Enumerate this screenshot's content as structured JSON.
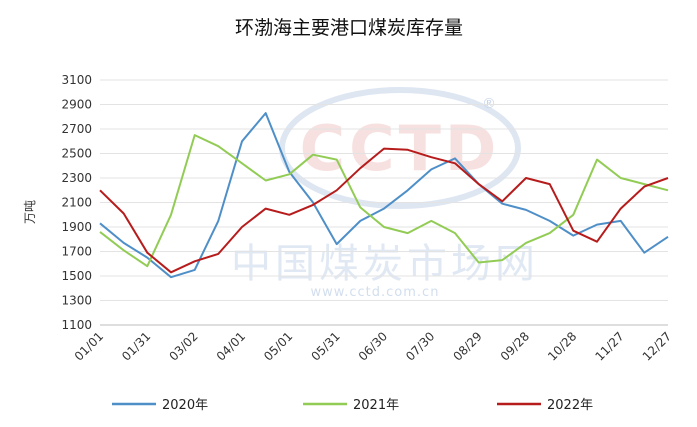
{
  "chart_data": {
    "type": "line",
    "title": "环渤海主要港口煤炭库存量",
    "ylabel": "万吨",
    "xlabel": "",
    "ylim": [
      1100,
      3100
    ],
    "yticks": [
      1100,
      1300,
      1500,
      1700,
      1900,
      2100,
      2300,
      2500,
      2700,
      2900,
      3100
    ],
    "xticks": [
      "01/01",
      "01/31",
      "03/02",
      "04/01",
      "05/01",
      "05/31",
      "06/30",
      "07/30",
      "08/29",
      "09/28",
      "10/28",
      "11/27",
      "12/27"
    ],
    "x": [
      0,
      15,
      30,
      45,
      60,
      75,
      90,
      105,
      120,
      135,
      150,
      165,
      180,
      195,
      210,
      225,
      240,
      255,
      270,
      285,
      300,
      315,
      330,
      345,
      360
    ],
    "grid": true,
    "legend_position": "bottom",
    "series": [
      {
        "name": "2020年",
        "color": "#4f8fc8",
        "values": [
          1930,
          1770,
          1650,
          1490,
          1550,
          1950,
          2600,
          2830,
          2350,
          2100,
          1760,
          1950,
          2050,
          2200,
          2370,
          2460,
          2250,
          2090,
          2040,
          1950,
          1830,
          1920,
          1950,
          1690,
          1820
        ]
      },
      {
        "name": "2021年",
        "color": "#92cc55",
        "values": [
          1860,
          1710,
          1580,
          2000,
          2650,
          2560,
          2420,
          2280,
          2330,
          2490,
          2450,
          2060,
          1900,
          1850,
          1950,
          1850,
          1610,
          1630,
          1770,
          1850,
          2000,
          2450,
          2300,
          2250,
          2200
        ]
      },
      {
        "name": "2022年",
        "color": "#b71c1c",
        "values": [
          2200,
          2010,
          1690,
          1530,
          1620,
          1680,
          1900,
          2050,
          2000,
          2080,
          2200,
          2380,
          2540,
          2530,
          2470,
          2420,
          2250,
          2110,
          2300,
          2250,
          1870,
          1780,
          2050,
          2230,
          2300
        ]
      }
    ]
  },
  "watermark": {
    "logo": "CCTD",
    "registered": "®",
    "name": "中国煤炭市场网",
    "url": "www.cctd.com.cn"
  }
}
